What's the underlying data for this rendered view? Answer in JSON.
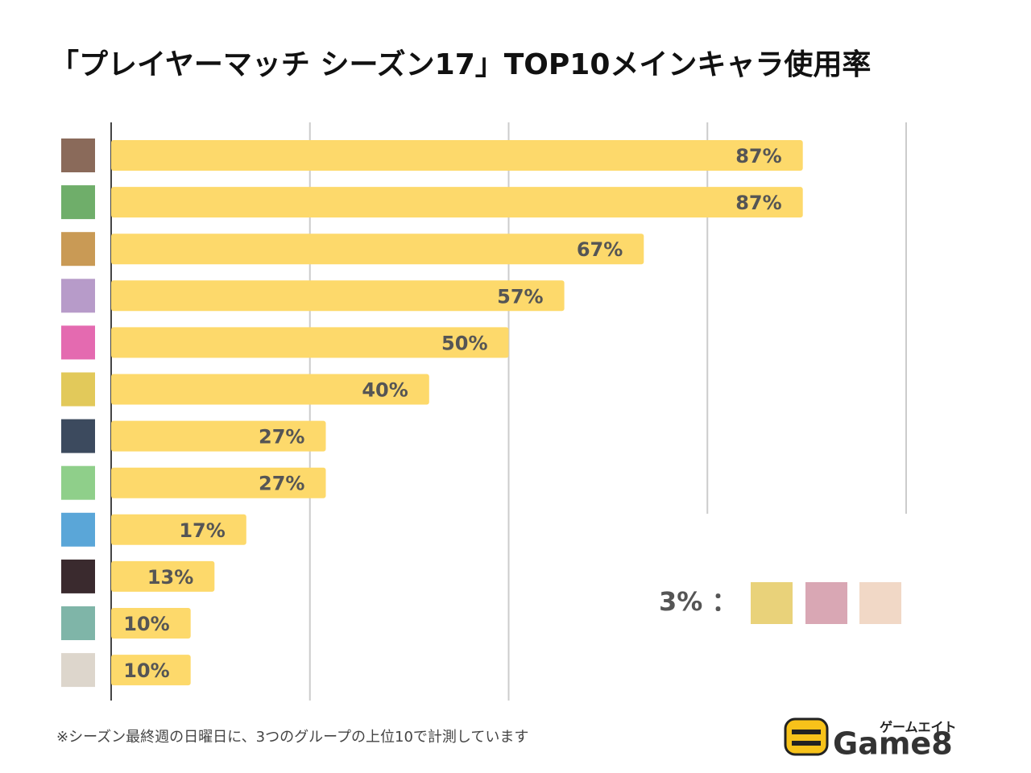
{
  "chart_data": {
    "type": "barh",
    "title": "「プレイヤーマッチ シーズン17」TOP10メインキャラ使用率",
    "categories": [
      null,
      null,
      null,
      null,
      null,
      null,
      null,
      null,
      null,
      null,
      null,
      null
    ],
    "values": [
      87,
      87,
      67,
      57,
      50,
      40,
      27,
      27,
      17,
      13,
      10,
      10
    ],
    "value_labels": [
      "87%",
      "87%",
      "67%",
      "57%",
      "50%",
      "40%",
      "27%",
      "27%",
      "17%",
      "13%",
      "10%",
      "10%"
    ],
    "color": "#fdd96b",
    "xlim": [
      0,
      100
    ],
    "xticks": [
      0,
      25,
      50,
      75,
      100
    ],
    "grid": true,
    "annotation": "3% ：",
    "footnote": "※シーズン最終週の日曜日に、3つのグループの上位10で計測しています",
    "logo": {
      "kana": "ゲームエイト",
      "name": "Game8"
    }
  }
}
